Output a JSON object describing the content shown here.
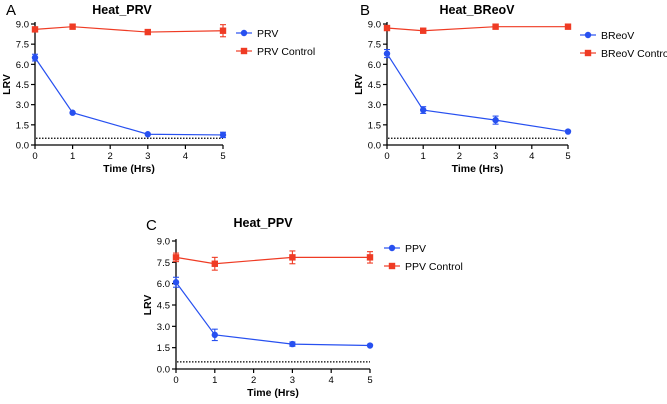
{
  "colors": {
    "ppv_series": "#2750f0",
    "control_series": "#ef3b24",
    "axis": "#000000",
    "threshold": "#000000"
  },
  "chart_data": [
    {
      "type": "line",
      "panel_label": "A",
      "title": "Heat_PRV",
      "xlabel": "Time (Hrs)",
      "ylabel": "LRV",
      "xlim": [
        0,
        5
      ],
      "ylim": [
        0,
        9
      ],
      "xticks": [
        "0",
        "1",
        "2",
        "3",
        "4",
        "5"
      ],
      "yticks": [
        "0.0",
        "1.5",
        "3.0",
        "4.5",
        "6.0",
        "7.5",
        "9.0"
      ],
      "threshold": 0.5,
      "legend_position": "right",
      "series": [
        {
          "name": "PRV",
          "marker": "circle",
          "color": "#2750f0",
          "x": [
            0,
            1,
            3,
            5
          ],
          "y": [
            6.5,
            2.4,
            0.8,
            0.75
          ],
          "err": [
            0.25,
            0,
            0,
            0.2
          ]
        },
        {
          "name": "PRV Control",
          "marker": "square",
          "color": "#ef3b24",
          "x": [
            0,
            1,
            3,
            5
          ],
          "y": [
            8.6,
            8.8,
            8.4,
            8.5
          ],
          "err": [
            0,
            0,
            0,
            0.45
          ]
        }
      ]
    },
    {
      "type": "line",
      "panel_label": "B",
      "title": "Heat_BReoV",
      "xlabel": "Time (Hrs)",
      "ylabel": "LRV",
      "xlim": [
        0,
        5
      ],
      "ylim": [
        0,
        9
      ],
      "xticks": [
        "0",
        "1",
        "2",
        "3",
        "4",
        "5"
      ],
      "yticks": [
        "0.0",
        "1.5",
        "3.0",
        "4.5",
        "6.0",
        "7.5",
        "9.0"
      ],
      "threshold": 0.5,
      "legend_position": "right",
      "series": [
        {
          "name": "BReoV",
          "marker": "circle",
          "color": "#2750f0",
          "x": [
            0,
            1,
            3,
            5
          ],
          "y": [
            6.8,
            2.6,
            1.85,
            1.0
          ],
          "err": [
            0.3,
            0.25,
            0.3,
            0
          ]
        },
        {
          "name": "BReoV Control",
          "marker": "square",
          "color": "#ef3b24",
          "x": [
            0,
            1,
            3,
            5
          ],
          "y": [
            8.7,
            8.5,
            8.8,
            8.8
          ],
          "err": [
            0,
            0,
            0,
            0
          ]
        }
      ]
    },
    {
      "type": "line",
      "panel_label": "C",
      "title": "Heat_PPV",
      "xlabel": "Time (Hrs)",
      "ylabel": "LRV",
      "xlim": [
        0,
        5
      ],
      "ylim": [
        0,
        9
      ],
      "xticks": [
        "0",
        "1",
        "2",
        "3",
        "4",
        "5"
      ],
      "yticks": [
        "0.0",
        "1.5",
        "3.0",
        "4.5",
        "6.0",
        "7.5",
        "9.0"
      ],
      "threshold": 0.5,
      "legend_position": "right",
      "series": [
        {
          "name": "PPV",
          "marker": "circle",
          "color": "#2750f0",
          "x": [
            0,
            1,
            3,
            5
          ],
          "y": [
            6.1,
            2.4,
            1.75,
            1.65
          ],
          "err": [
            0.35,
            0.4,
            0.15,
            0
          ]
        },
        {
          "name": "PPV Control",
          "marker": "square",
          "color": "#ef3b24",
          "x": [
            0,
            1,
            3,
            5
          ],
          "y": [
            7.85,
            7.4,
            7.85,
            7.85
          ],
          "err": [
            0.3,
            0.45,
            0.45,
            0.4
          ]
        }
      ]
    }
  ]
}
